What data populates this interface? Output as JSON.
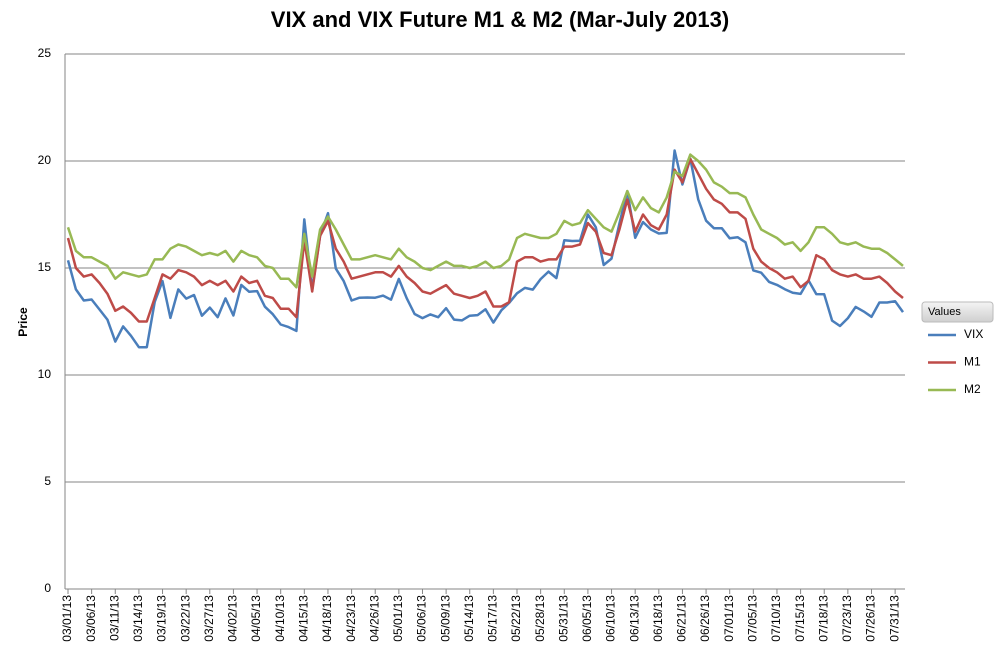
{
  "chart_data": {
    "type": "line",
    "title": "VIX and VIX Future M1 & M2  (Mar-July 2013)",
    "y_label": "Price",
    "legend_title": "Values",
    "legend": "right",
    "grid": true,
    "ylim": [
      0,
      25
    ],
    "yticks": [
      0,
      5,
      10,
      15,
      20,
      25
    ],
    "categories": [
      "03/01/13",
      null,
      null,
      "03/06/13",
      null,
      null,
      "03/11/13",
      null,
      null,
      "03/14/13",
      null,
      null,
      "03/19/13",
      null,
      null,
      "03/22/13",
      null,
      null,
      "03/27/13",
      null,
      null,
      "04/02/13",
      null,
      null,
      "04/05/13",
      null,
      null,
      "04/10/13",
      null,
      null,
      "04/15/13",
      null,
      null,
      "04/18/13",
      null,
      null,
      "04/23/13",
      null,
      null,
      "04/26/13",
      null,
      null,
      "05/01/13",
      null,
      null,
      "05/06/13",
      null,
      null,
      "05/09/13",
      null,
      null,
      "05/14/13",
      null,
      null,
      "05/17/13",
      null,
      null,
      "05/22/13",
      null,
      null,
      "05/28/13",
      null,
      null,
      "05/31/13",
      null,
      null,
      "06/05/13",
      null,
      null,
      "06/10/13",
      null,
      null,
      "06/13/13",
      null,
      null,
      "06/18/13",
      null,
      null,
      "06/21/13",
      null,
      null,
      "06/26/13",
      null,
      null,
      "07/01/13",
      null,
      null,
      "07/05/13",
      null,
      null,
      "07/10/13",
      null,
      null,
      "07/15/13",
      null,
      null,
      "07/18/13",
      null,
      null,
      "07/23/13",
      null,
      null,
      "07/26/13",
      null,
      null,
      "07/31/13",
      null
    ],
    "series": [
      {
        "name": "VIX",
        "color": "#4a7ebb",
        "values": [
          15.36,
          14.0,
          13.48,
          13.53,
          13.06,
          12.59,
          11.56,
          12.27,
          11.83,
          11.3,
          11.3,
          13.41,
          14.39,
          12.67,
          14.0,
          13.57,
          13.74,
          12.77,
          13.15,
          12.7,
          13.58,
          12.78,
          14.21,
          13.89,
          13.92,
          13.19,
          12.84,
          12.36,
          12.24,
          12.06,
          17.27,
          14.0,
          16.51,
          17.56,
          14.97,
          14.39,
          13.48,
          13.61,
          13.62,
          13.61,
          13.71,
          13.52,
          14.49,
          13.59,
          12.85,
          12.66,
          12.83,
          12.7,
          13.12,
          12.59,
          12.55,
          12.77,
          12.8,
          13.07,
          12.45,
          13.02,
          13.37,
          13.82,
          14.07,
          13.99,
          14.48,
          14.83,
          14.53,
          16.3,
          16.26,
          16.27,
          17.5,
          16.9,
          15.14,
          15.44,
          17.07,
          18.59,
          16.41,
          17.15,
          16.8,
          16.61,
          16.64,
          20.49,
          18.9,
          20.11,
          18.21,
          17.21,
          16.86,
          16.86,
          16.39,
          16.44,
          16.2,
          14.89,
          14.78,
          14.35,
          14.21,
          14.01,
          13.84,
          13.79,
          14.42,
          13.78,
          13.77,
          12.54,
          12.29,
          12.66,
          13.18,
          12.97,
          12.72,
          13.39,
          13.39,
          13.45,
          12.94
        ]
      },
      {
        "name": "M1",
        "color": "#be4b48",
        "values": [
          16.4,
          15.0,
          14.6,
          14.7,
          14.3,
          13.8,
          13.0,
          13.2,
          12.9,
          12.5,
          12.5,
          13.6,
          14.7,
          14.5,
          14.9,
          14.8,
          14.6,
          14.2,
          14.4,
          14.2,
          14.4,
          13.9,
          14.6,
          14.3,
          14.4,
          13.7,
          13.6,
          13.1,
          13.1,
          12.7,
          16.3,
          13.9,
          16.5,
          17.2,
          15.9,
          15.3,
          14.5,
          14.6,
          14.7,
          14.8,
          14.8,
          14.6,
          15.1,
          14.6,
          14.3,
          13.9,
          13.8,
          14.0,
          14.2,
          13.8,
          13.7,
          13.6,
          13.7,
          13.9,
          13.2,
          13.2,
          13.4,
          15.3,
          15.5,
          15.5,
          15.3,
          15.4,
          15.4,
          16.0,
          16.0,
          16.1,
          17.1,
          16.7,
          15.7,
          15.6,
          16.8,
          18.2,
          16.7,
          17.5,
          17.0,
          16.8,
          17.5,
          19.6,
          19.0,
          20.1,
          19.4,
          18.7,
          18.2,
          18.0,
          17.6,
          17.6,
          17.3,
          15.9,
          15.3,
          15.0,
          14.8,
          14.5,
          14.6,
          14.1,
          14.4,
          15.6,
          15.4,
          14.9,
          14.7,
          14.6,
          14.7,
          14.5,
          14.5,
          14.6,
          14.3,
          13.9,
          13.6
        ]
      },
      {
        "name": "M2",
        "color": "#98b954",
        "values": [
          16.9,
          15.8,
          15.5,
          15.5,
          15.3,
          15.1,
          14.5,
          14.8,
          14.7,
          14.6,
          14.7,
          15.4,
          15.4,
          15.9,
          16.1,
          16.0,
          15.8,
          15.6,
          15.7,
          15.6,
          15.8,
          15.3,
          15.8,
          15.6,
          15.5,
          15.1,
          15.0,
          14.5,
          14.5,
          14.1,
          16.6,
          14.6,
          16.8,
          17.4,
          16.8,
          16.1,
          15.4,
          15.4,
          15.5,
          15.6,
          15.5,
          15.4,
          15.9,
          15.5,
          15.3,
          15.0,
          14.9,
          15.1,
          15.3,
          15.1,
          15.1,
          15.0,
          15.1,
          15.3,
          15.0,
          15.1,
          15.4,
          16.4,
          16.6,
          16.5,
          16.4,
          16.4,
          16.6,
          17.2,
          17.0,
          17.1,
          17.7,
          17.3,
          16.9,
          16.7,
          17.6,
          18.6,
          17.7,
          18.3,
          17.8,
          17.6,
          18.3,
          19.5,
          19.3,
          20.3,
          20.0,
          19.6,
          19.0,
          18.8,
          18.5,
          18.5,
          18.3,
          17.5,
          16.8,
          16.6,
          16.4,
          16.1,
          16.2,
          15.8,
          16.2,
          16.9,
          16.9,
          16.6,
          16.2,
          16.1,
          16.2,
          16.0,
          15.9,
          15.9,
          15.7,
          15.4,
          15.1
        ]
      }
    ]
  }
}
